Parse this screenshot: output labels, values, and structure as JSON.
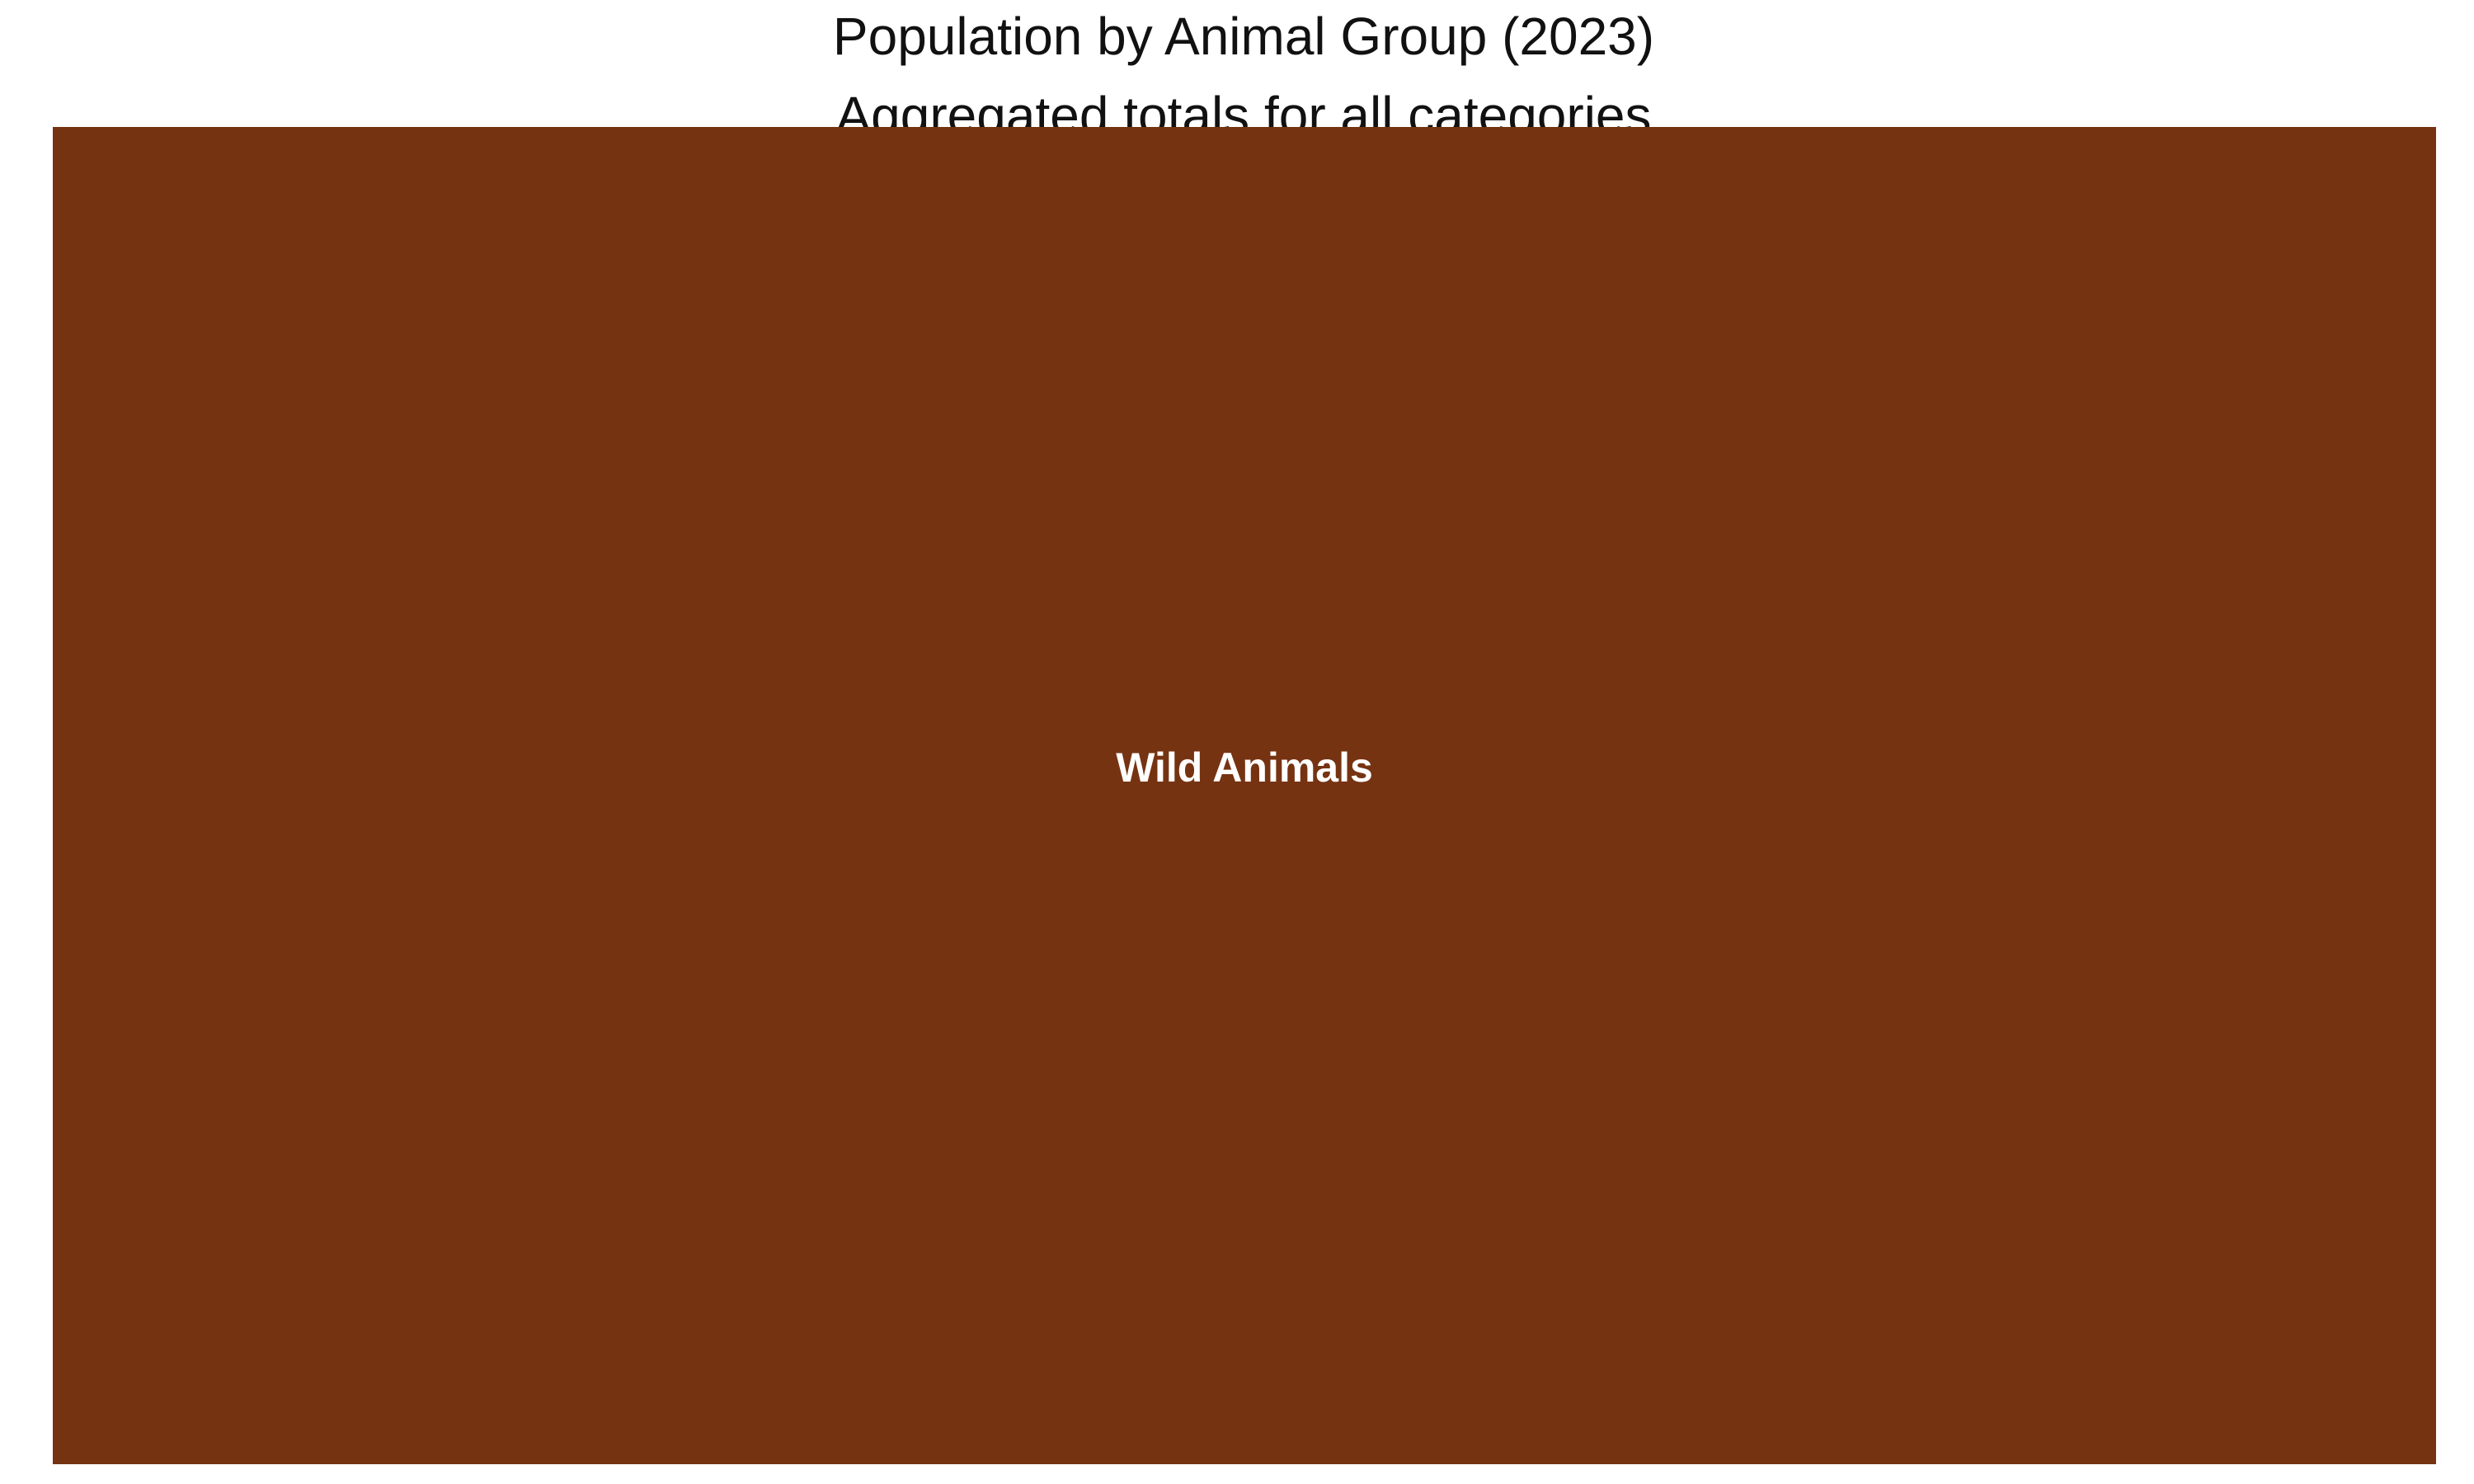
{
  "chart_data": {
    "type": "treemap",
    "title": "Population by Animal Group (2023)",
    "subtitle": "Aggregated totals for all categories",
    "nodes": [
      {
        "label": "Wild Animals",
        "share": 1.0,
        "color": "#763312"
      }
    ],
    "label_color": "#ffffff",
    "legend": "none",
    "grid": false
  }
}
